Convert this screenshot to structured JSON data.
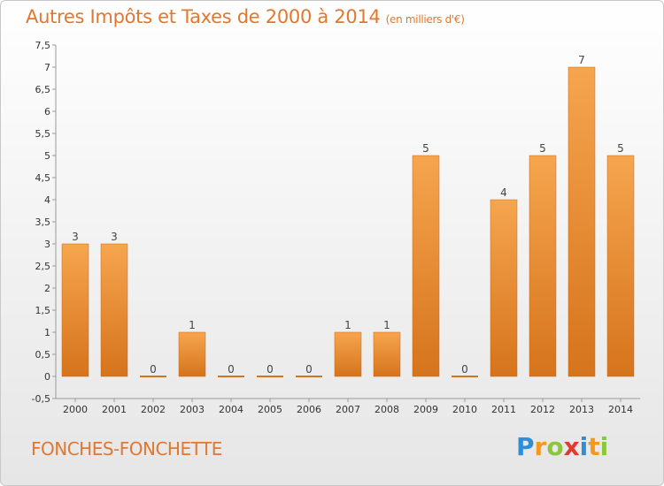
{
  "header": {
    "title": "Autres Impôts et Taxes de 2000 à 2014",
    "subtitle": "(en milliers d'€)"
  },
  "footer": {
    "commune": "FONCHES-FONCHETTE",
    "brand_letters": [
      {
        "ch": "P",
        "color": "#2e8fd6"
      },
      {
        "ch": "r",
        "color": "#f39a1e"
      },
      {
        "ch": "o",
        "color": "#8cc63f"
      },
      {
        "ch": "x",
        "color": "#e23a2e"
      },
      {
        "ch": "i",
        "color": "#2e8fd6"
      },
      {
        "ch": "t",
        "color": "#f39a1e"
      },
      {
        "ch": "i",
        "color": "#8cc63f"
      }
    ]
  },
  "chart_data": {
    "type": "bar",
    "categories": [
      "2000",
      "2001",
      "2002",
      "2003",
      "2004",
      "2005",
      "2006",
      "2007",
      "2008",
      "2009",
      "2010",
      "2011",
      "2012",
      "2013",
      "2014"
    ],
    "values": [
      3,
      3,
      0,
      1,
      0,
      0,
      0,
      1,
      1,
      5,
      0,
      4,
      5,
      7,
      5
    ],
    "data_labels": [
      "3",
      "3",
      "0",
      "1",
      "0",
      "0",
      "0",
      "1",
      "1",
      "5",
      "0",
      "4",
      "5",
      "7",
      "5"
    ],
    "y_ticks": [
      "-0,5",
      "0",
      "0,5",
      "1",
      "1,5",
      "2",
      "2,5",
      "3",
      "3,5",
      "4",
      "4,5",
      "5",
      "5,5",
      "6",
      "6,5",
      "7",
      "7,5"
    ],
    "ylim": [
      -0.5,
      7.5
    ],
    "bar_color_light": "#f6a54f",
    "bar_color_dark": "#d5741c",
    "grid": false
  }
}
